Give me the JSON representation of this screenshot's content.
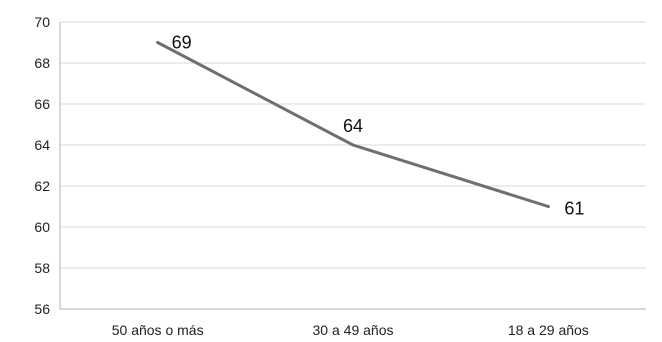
{
  "chart_data": {
    "type": "line",
    "categories": [
      "50 años o más",
      "30 a 49 años",
      "18 a 29 años"
    ],
    "series": [
      {
        "values": [
          69,
          64,
          61
        ]
      }
    ],
    "data_labels": [
      "69",
      "64",
      "61"
    ],
    "ylim": [
      56,
      70
    ],
    "yticks": [
      56,
      58,
      60,
      62,
      64,
      66,
      68,
      70
    ],
    "grid": true,
    "colors": {
      "line": "#6f6f6f",
      "grid": "#d9d9d9",
      "axis": "#bfbfbf"
    }
  }
}
